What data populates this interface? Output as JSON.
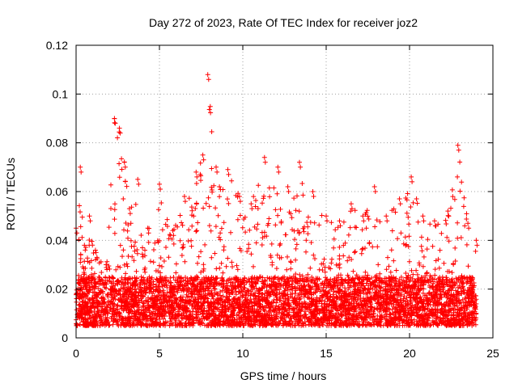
{
  "chart_data": {
    "type": "scatter",
    "title": "Day 272 of 2023, Rate Of TEC Index for receiver joz2",
    "xlabel": "GPS time / hours",
    "ylabel": "ROTI / TECUs",
    "xlim": [
      0,
      25
    ],
    "ylim": [
      0,
      0.12
    ],
    "x_ticks": [
      "0",
      "5",
      "10",
      "15",
      "20",
      "25"
    ],
    "y_ticks": [
      "0",
      "0.02",
      "0.04",
      "0.06",
      "0.08",
      "0.1",
      "0.12"
    ],
    "x_tick_values": [
      0,
      5,
      10,
      15,
      20,
      25
    ],
    "y_tick_values": [
      0,
      0.02,
      0.04,
      0.06,
      0.08,
      0.1,
      0.12
    ],
    "grid": true,
    "marker": "plus",
    "color": "#ff0000",
    "x_data_range": [
      0,
      24
    ],
    "typical_band": [
      0.005,
      0.025
    ],
    "envelope": [
      {
        "x": 0.0,
        "y": 0.045
      },
      {
        "x": 0.25,
        "y": 0.07
      },
      {
        "x": 0.5,
        "y": 0.038
      },
      {
        "x": 0.8,
        "y": 0.05
      },
      {
        "x": 1.2,
        "y": 0.035
      },
      {
        "x": 1.8,
        "y": 0.03
      },
      {
        "x": 2.3,
        "y": 0.09
      },
      {
        "x": 2.6,
        "y": 0.086
      },
      {
        "x": 2.9,
        "y": 0.072
      },
      {
        "x": 3.2,
        "y": 0.053
      },
      {
        "x": 3.7,
        "y": 0.065
      },
      {
        "x": 4.3,
        "y": 0.045
      },
      {
        "x": 5.0,
        "y": 0.063
      },
      {
        "x": 5.8,
        "y": 0.044
      },
      {
        "x": 6.5,
        "y": 0.058
      },
      {
        "x": 7.2,
        "y": 0.068
      },
      {
        "x": 7.6,
        "y": 0.075
      },
      {
        "x": 7.9,
        "y": 0.108
      },
      {
        "x": 8.4,
        "y": 0.07
      },
      {
        "x": 9.1,
        "y": 0.069
      },
      {
        "x": 9.8,
        "y": 0.058
      },
      {
        "x": 10.5,
        "y": 0.055
      },
      {
        "x": 11.3,
        "y": 0.074
      },
      {
        "x": 12.1,
        "y": 0.07
      },
      {
        "x": 12.7,
        "y": 0.062
      },
      {
        "x": 13.4,
        "y": 0.072
      },
      {
        "x": 14.2,
        "y": 0.06
      },
      {
        "x": 15.0,
        "y": 0.05
      },
      {
        "x": 15.8,
        "y": 0.048
      },
      {
        "x": 16.5,
        "y": 0.055
      },
      {
        "x": 17.2,
        "y": 0.05
      },
      {
        "x": 17.9,
        "y": 0.062
      },
      {
        "x": 18.6,
        "y": 0.05
      },
      {
        "x": 19.4,
        "y": 0.057
      },
      {
        "x": 20.1,
        "y": 0.066
      },
      {
        "x": 20.8,
        "y": 0.05
      },
      {
        "x": 21.5,
        "y": 0.048
      },
      {
        "x": 22.3,
        "y": 0.052
      },
      {
        "x": 22.9,
        "y": 0.079
      },
      {
        "x": 23.5,
        "y": 0.047
      },
      {
        "x": 24.0,
        "y": 0.04
      }
    ]
  }
}
